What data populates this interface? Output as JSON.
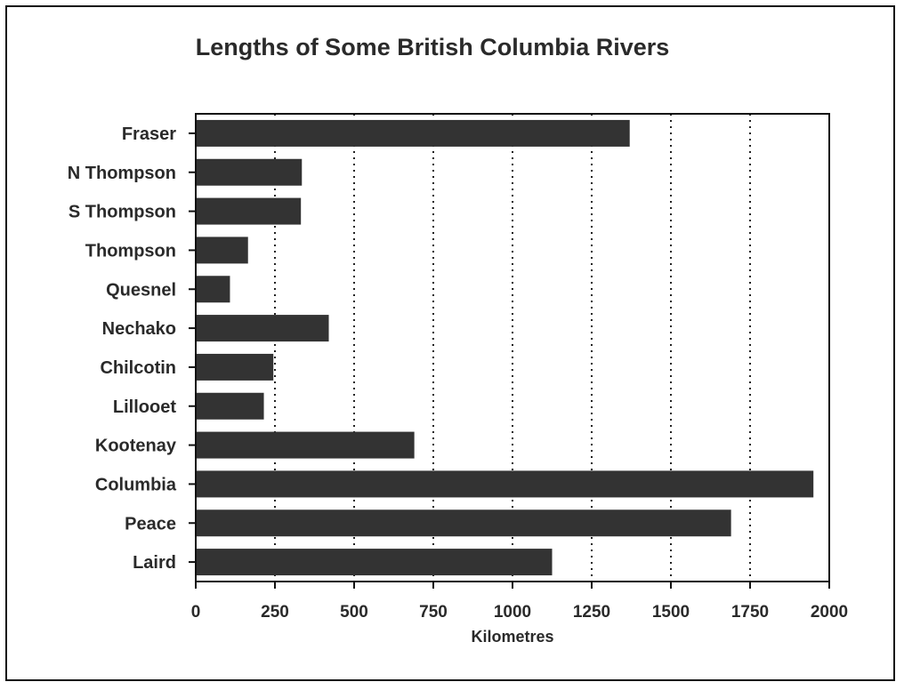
{
  "chart_data": {
    "type": "bar",
    "orientation": "horizontal",
    "title": "Lengths of Some British Columbia Rivers",
    "xlabel": "Kilometres",
    "ylabel": "",
    "categories": [
      "Fraser",
      "N Thompson",
      "S Thompson",
      "Thompson",
      "Quesnel",
      "Nechako",
      "Chilcotin",
      "Lillooet",
      "Kootenay",
      "Columbia",
      "Peace",
      "Laird"
    ],
    "values": [
      1370,
      335,
      332,
      165,
      108,
      420,
      245,
      215,
      690,
      1950,
      1690,
      1125
    ],
    "xlim": [
      0,
      2000
    ],
    "xticks": [
      "0",
      "250",
      "500",
      "750",
      "1000",
      "1250",
      "1500",
      "1750",
      "2000"
    ],
    "grid": "vertical dotted",
    "legend": "none",
    "colors": {
      "bar": "#333333",
      "axis": "#111111",
      "grid": "#222222",
      "text": "#2a2a2a"
    }
  }
}
